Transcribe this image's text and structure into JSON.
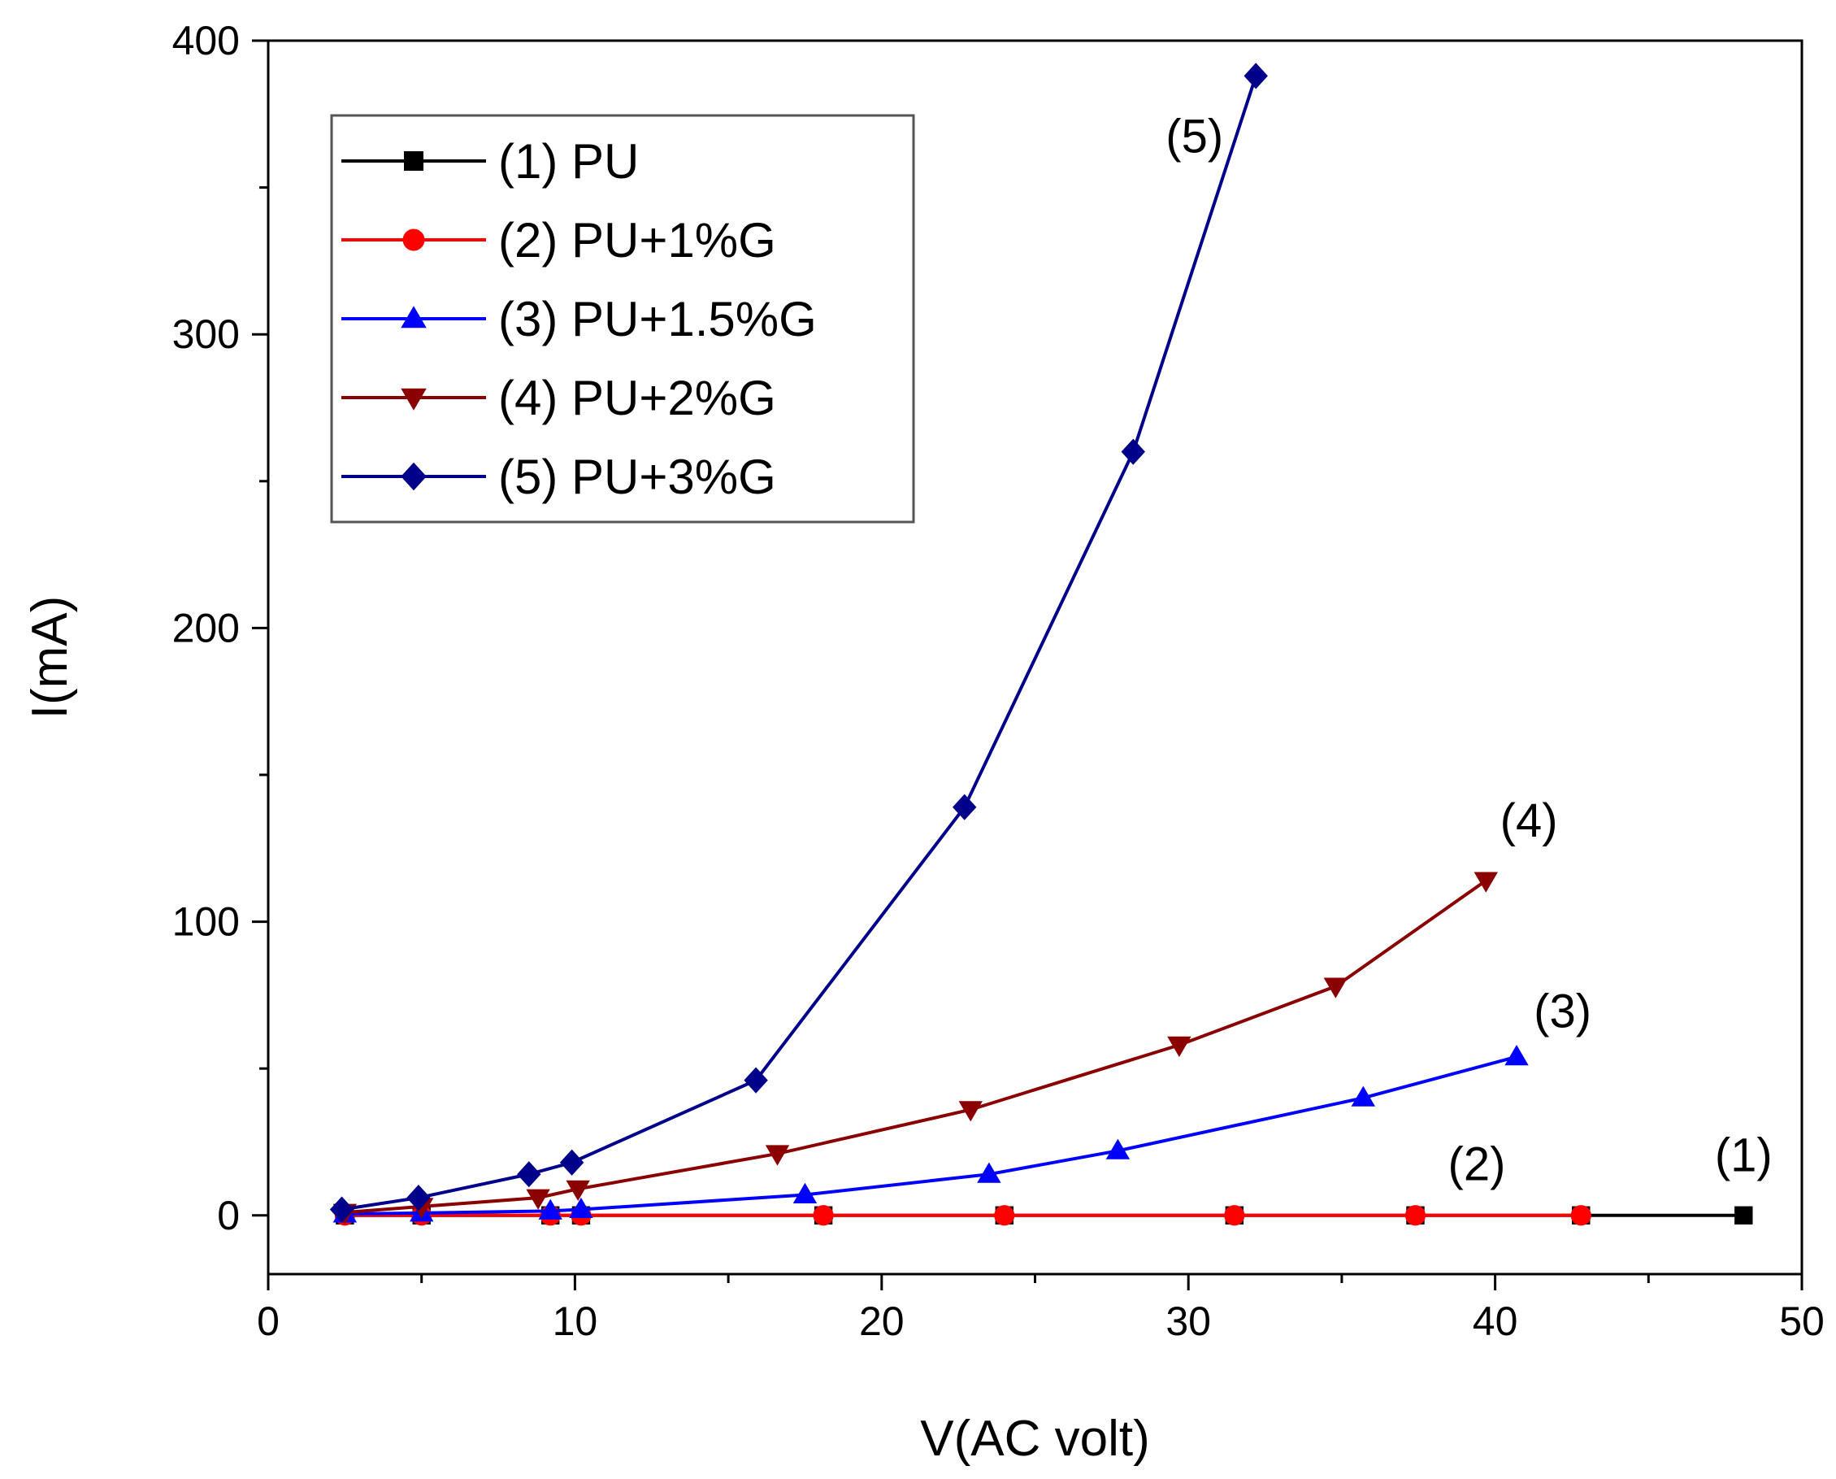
{
  "chart_data": {
    "type": "line",
    "title": "",
    "xlabel": "V(AC volt)",
    "ylabel": "I(mA)",
    "xlim": [
      0,
      50
    ],
    "ylim": [
      -20,
      400
    ],
    "xticks": [
      0,
      10,
      20,
      30,
      40,
      50
    ],
    "yticks": [
      0,
      100,
      200,
      300,
      400
    ],
    "xtick_labels": [
      "0",
      "10",
      "20",
      "30",
      "40",
      "50"
    ],
    "ytick_labels": [
      "0",
      "100",
      "200",
      "300",
      "400"
    ],
    "x_minor_step": 5,
    "y_minor_step": 50,
    "grid": false,
    "legend_position": "top-left",
    "series": [
      {
        "name": "(1) PU",
        "label": "(1)",
        "color": "#000000",
        "marker": "square",
        "x": [
          2.5,
          5,
          9.2,
          10.2,
          18.1,
          24,
          31.5,
          37.4,
          42.8,
          48.1
        ],
        "y": [
          0,
          0,
          0,
          0,
          0,
          0,
          0,
          0,
          0,
          0
        ],
        "label_at": [
          48.1,
          15
        ]
      },
      {
        "name": "(2) PU+1%G",
        "label": "(2)",
        "color": "#ff0000",
        "marker": "circle",
        "x": [
          2.5,
          5,
          9.2,
          10.2,
          18.1,
          24,
          31.5,
          37.4,
          42.8
        ],
        "y": [
          0,
          0,
          0,
          0,
          0,
          0,
          0,
          0,
          0
        ],
        "label_at": [
          39.4,
          12
        ]
      },
      {
        "name": "(3) PU+1.5%G",
        "label": "(3)",
        "color": "#0000ff",
        "marker": "triangle-up",
        "x": [
          2.5,
          5,
          9.2,
          10.2,
          17.5,
          23.5,
          27.7,
          35.7,
          40.7
        ],
        "y": [
          0.5,
          0.8,
          1.5,
          2,
          7,
          14,
          22,
          40,
          54
        ],
        "label_at": [
          42.2,
          64
        ]
      },
      {
        "name": "(4) PU+2%G",
        "label": "(4)",
        "color": "#8b0000",
        "marker": "triangle-down",
        "x": [
          2.5,
          5,
          8.8,
          10.1,
          16.6,
          22.9,
          29.7,
          34.8,
          39.7
        ],
        "y": [
          1,
          3,
          6,
          9,
          21,
          36,
          58,
          78,
          114
        ],
        "label_at": [
          41.1,
          129
        ]
      },
      {
        "name": "(5) PU+3%G",
        "label": "(5)",
        "color": "#00008b",
        "marker": "diamond",
        "x": [
          2.4,
          4.9,
          8.5,
          9.9,
          15.9,
          22.7,
          28.2,
          32.2
        ],
        "y": [
          2,
          6,
          14,
          18,
          46,
          139,
          260,
          388
        ],
        "label_at": [
          30.2,
          362
        ]
      }
    ]
  }
}
